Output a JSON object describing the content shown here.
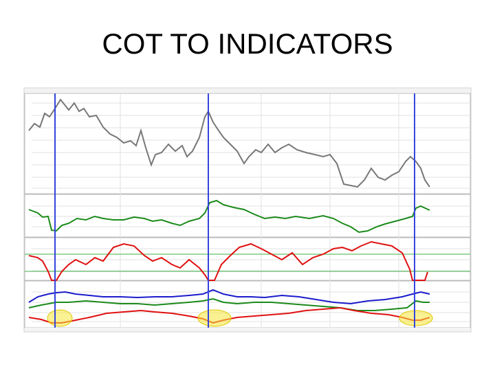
{
  "slide": {
    "title": "COT TO INDICATORS"
  }
}
